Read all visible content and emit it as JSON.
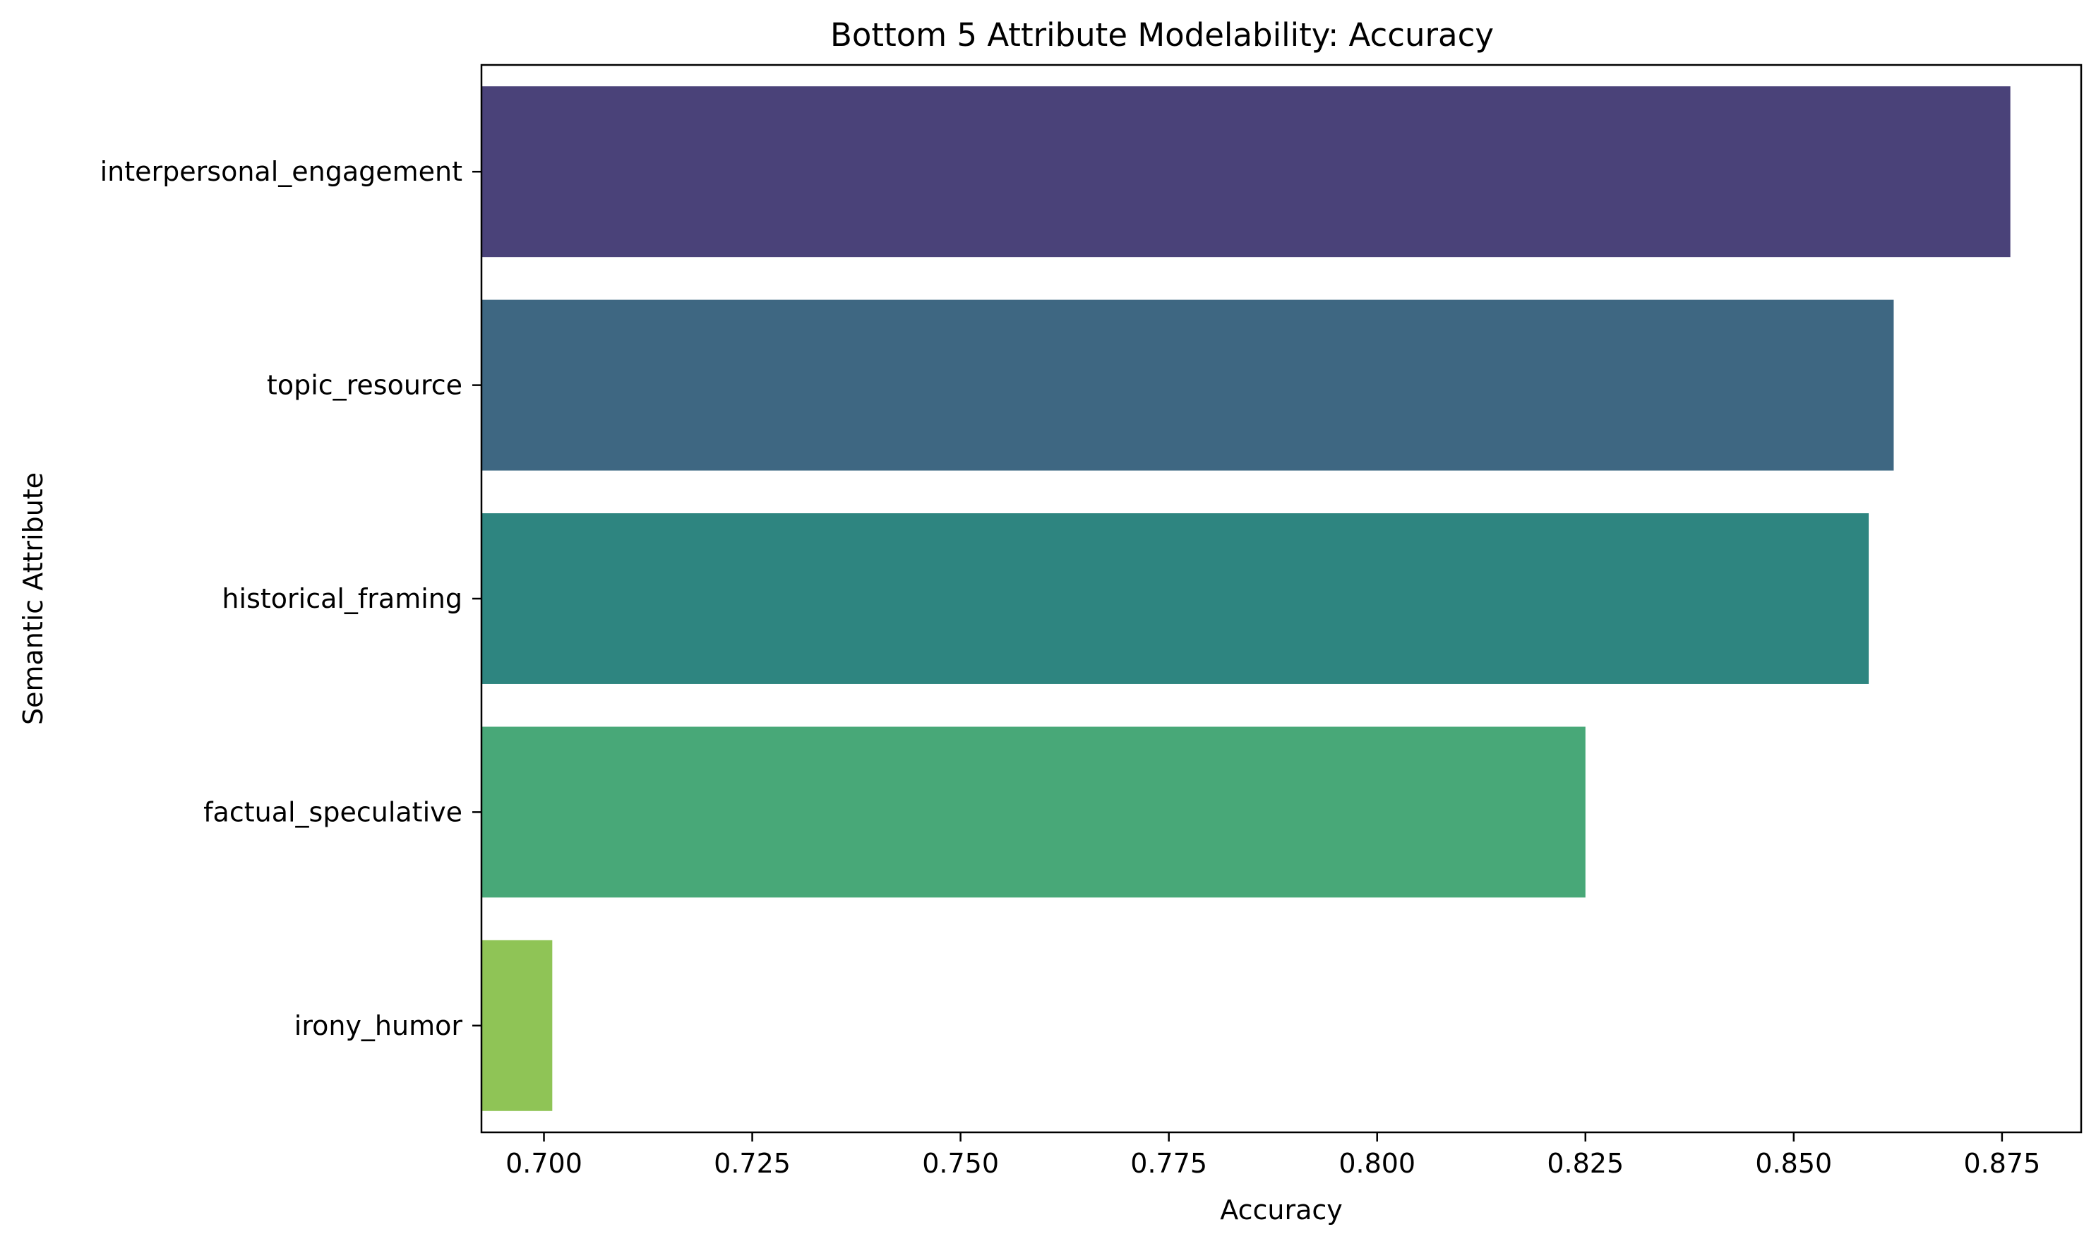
{
  "chart_data": {
    "type": "bar",
    "orientation": "horizontal",
    "title": "Bottom 5 Attribute Modelability: Accuracy",
    "xlabel": "Accuracy",
    "ylabel": "Semantic Attribute",
    "categories": [
      "interpersonal_engagement",
      "topic_resource",
      "historical_framing",
      "factual_speculative",
      "irony_humor"
    ],
    "values": [
      0.876,
      0.862,
      0.859,
      0.825,
      0.701
    ],
    "colors": [
      "#4a4279",
      "#3e6782",
      "#2e8580",
      "#48a878",
      "#8fc456"
    ],
    "xlim": [
      0.6925,
      0.8845
    ],
    "xticks": [
      0.7,
      0.725,
      0.75,
      0.775,
      0.8,
      0.825,
      0.85,
      0.875
    ],
    "xtick_labels": [
      "0.700",
      "0.725",
      "0.750",
      "0.775",
      "0.800",
      "0.825",
      "0.850",
      "0.875"
    ],
    "grid": false,
    "legend": "none"
  }
}
